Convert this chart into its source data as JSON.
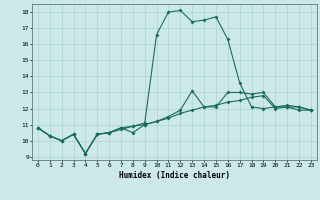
{
  "xlabel": "Humidex (Indice chaleur)",
  "xlim": [
    -0.5,
    23.5
  ],
  "ylim": [
    8.8,
    18.5
  ],
  "yticks": [
    9,
    10,
    11,
    12,
    13,
    14,
    15,
    16,
    17,
    18
  ],
  "xticks": [
    0,
    1,
    2,
    3,
    4,
    5,
    6,
    7,
    8,
    9,
    10,
    11,
    12,
    13,
    14,
    15,
    16,
    17,
    18,
    19,
    20,
    21,
    22,
    23
  ],
  "background_color": "#cce8e8",
  "line_color": "#1a6b5a",
  "grid_color": "#aad4d4",
  "line1_x": [
    0,
    1,
    2,
    3,
    4,
    5,
    6,
    7,
    8,
    9,
    10,
    11,
    12,
    13,
    14,
    15,
    16,
    17,
    18,
    19,
    20,
    21,
    22,
    23
  ],
  "line1_y": [
    10.8,
    10.3,
    10.0,
    10.4,
    9.2,
    10.4,
    10.5,
    10.8,
    10.5,
    11.0,
    11.2,
    11.5,
    11.9,
    13.1,
    12.1,
    12.1,
    13.0,
    13.0,
    12.9,
    13.0,
    12.1,
    12.1,
    12.1,
    11.9
  ],
  "line2_x": [
    0,
    1,
    2,
    3,
    4,
    5,
    6,
    7,
    8,
    9,
    10,
    11,
    12,
    13,
    14,
    15,
    16,
    17,
    18,
    19,
    20,
    21,
    22,
    23
  ],
  "line2_y": [
    10.8,
    10.3,
    10.0,
    10.4,
    9.2,
    10.4,
    10.5,
    10.8,
    10.9,
    11.1,
    16.6,
    18.0,
    18.1,
    17.4,
    17.5,
    17.7,
    16.3,
    13.6,
    12.1,
    12.0,
    12.1,
    12.2,
    12.1,
    11.9
  ],
  "line3_x": [
    0,
    1,
    2,
    3,
    4,
    5,
    6,
    7,
    8,
    9,
    10,
    11,
    12,
    13,
    14,
    15,
    16,
    17,
    18,
    19,
    20,
    21,
    22,
    23
  ],
  "line3_y": [
    10.8,
    10.3,
    10.0,
    10.4,
    9.2,
    10.4,
    10.5,
    10.7,
    10.9,
    11.0,
    11.2,
    11.4,
    11.7,
    11.9,
    12.1,
    12.2,
    12.4,
    12.5,
    12.7,
    12.8,
    12.0,
    12.1,
    11.9,
    11.9
  ]
}
